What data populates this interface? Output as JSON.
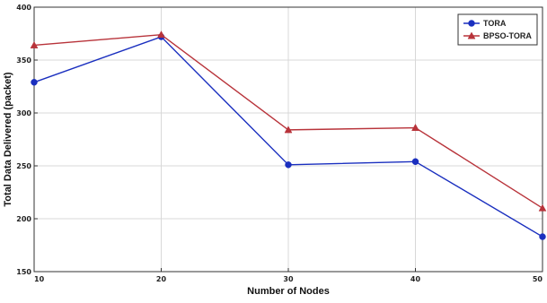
{
  "chart_data": {
    "type": "line",
    "title": "",
    "xlabel": "Number of Nodes",
    "ylabel": "Total Data Delivered (packet)",
    "x": [
      10,
      20,
      30,
      40,
      50
    ],
    "xlim": [
      10,
      50
    ],
    "ylim": [
      150,
      400
    ],
    "xticks": [
      10,
      20,
      30,
      40,
      50
    ],
    "yticks": [
      150,
      200,
      250,
      300,
      350,
      400
    ],
    "grid": true,
    "legend_position": "top-right",
    "series": [
      {
        "name": "TORA",
        "values": [
          329,
          372,
          251,
          254,
          183
        ],
        "color": "#1a2fbf",
        "marker": "circle"
      },
      {
        "name": "BPSO-TORA",
        "values": [
          364,
          374,
          284,
          286,
          210
        ],
        "color": "#b8333a",
        "marker": "triangle"
      }
    ]
  }
}
